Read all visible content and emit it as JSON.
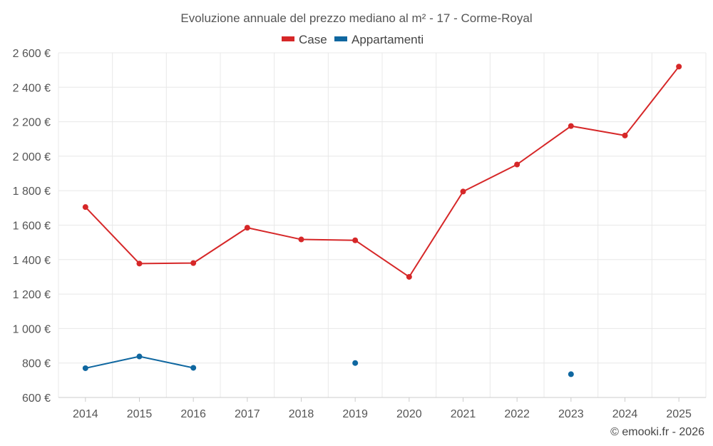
{
  "chart_data": {
    "type": "line",
    "title": "Evoluzione annuale del prezzo mediano al m² - 17 - Corme-Royal",
    "categories": [
      "2014",
      "2015",
      "2016",
      "2017",
      "2018",
      "2019",
      "2020",
      "2021",
      "2022",
      "2023",
      "2024",
      "2025"
    ],
    "ylim": [
      600,
      2600
    ],
    "yticks": [
      600,
      800,
      1000,
      1200,
      1400,
      1600,
      1800,
      2000,
      2200,
      2400,
      2600
    ],
    "ytick_labels": [
      "600 €",
      "800 €",
      "1 000 €",
      "1 200 €",
      "1 400 €",
      "1 600 €",
      "1 800 €",
      "2 000 €",
      "2 200 €",
      "2 400 €",
      "2 600 €"
    ],
    "grid": true,
    "legend_position": "top-center",
    "series": [
      {
        "name": "Case",
        "color": "#d62728",
        "values": [
          1705,
          1377,
          1380,
          1585,
          1517,
          1512,
          1300,
          1795,
          1952,
          2175,
          2120,
          2520
        ]
      },
      {
        "name": "Appartamenti",
        "color": "#0f67a0",
        "values": [
          770,
          838,
          772,
          null,
          null,
          800,
          null,
          null,
          null,
          735,
          null,
          null
        ]
      }
    ]
  },
  "credit": "© emooki.fr - 2026"
}
